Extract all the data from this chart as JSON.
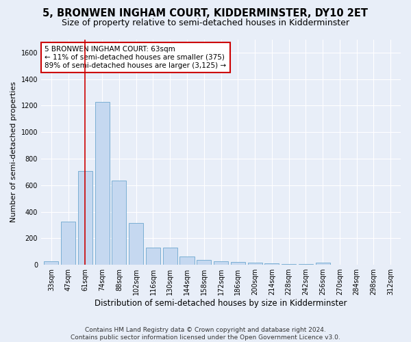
{
  "title": "5, BRONWEN INGHAM COURT, KIDDERMINSTER, DY10 2ET",
  "subtitle": "Size of property relative to semi-detached houses in Kidderminster",
  "xlabel": "Distribution of semi-detached houses by size in Kidderminster",
  "ylabel": "Number of semi-detached properties",
  "categories": [
    "33sqm",
    "47sqm",
    "61sqm",
    "74sqm",
    "88sqm",
    "102sqm",
    "116sqm",
    "130sqm",
    "144sqm",
    "158sqm",
    "172sqm",
    "186sqm",
    "200sqm",
    "214sqm",
    "228sqm",
    "242sqm",
    "256sqm",
    "270sqm",
    "284sqm",
    "298sqm",
    "312sqm"
  ],
  "values": [
    25,
    325,
    710,
    1230,
    635,
    315,
    130,
    130,
    65,
    35,
    25,
    20,
    15,
    10,
    5,
    5,
    15,
    0,
    0,
    0,
    0
  ],
  "bar_color": "#c5d8f0",
  "bar_edge_color": "#7bafd4",
  "red_line_index": 2,
  "annotation_text": "5 BRONWEN INGHAM COURT: 63sqm\n← 11% of semi-detached houses are smaller (375)\n89% of semi-detached houses are larger (3,125) →",
  "annotation_box_color": "#ffffff",
  "annotation_border_color": "#cc0000",
  "ylim": [
    0,
    1700
  ],
  "yticks": [
    0,
    200,
    400,
    600,
    800,
    1000,
    1200,
    1400,
    1600
  ],
  "background_color": "#e8eef8",
  "plot_background": "#e8eef8",
  "grid_color": "#ffffff",
  "footer": "Contains HM Land Registry data © Crown copyright and database right 2024.\nContains public sector information licensed under the Open Government Licence v3.0.",
  "title_fontsize": 10.5,
  "subtitle_fontsize": 9,
  "xlabel_fontsize": 8.5,
  "ylabel_fontsize": 8,
  "tick_fontsize": 7,
  "annotation_fontsize": 7.5,
  "footer_fontsize": 6.5
}
